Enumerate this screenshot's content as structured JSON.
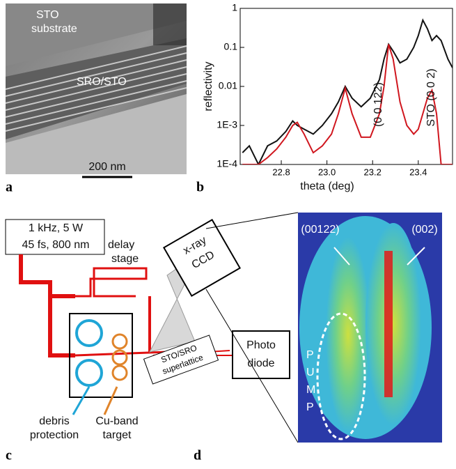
{
  "panel_a": {
    "label": "a",
    "texts": [
      "STO",
      "substrate",
      "SRO/STO"
    ],
    "scale_bar": "200 nm"
  },
  "chart_data": {
    "type": "line",
    "panel_label": "b",
    "x_label": "theta (deg)",
    "y_label": "reflectivity",
    "log_y": true,
    "xlim": [
      22.62,
      23.55
    ],
    "ylim": [
      0.0001,
      1
    ],
    "xticks": [
      22.8,
      {
        "value": 23,
        "label": "23.0"
      },
      23.2,
      23.4
    ],
    "yticks": [
      {
        "value": 0.0001,
        "label": "1E-4"
      },
      {
        "value": 0.001,
        "label": "1E-3"
      },
      0.01,
      0.1,
      1
    ],
    "annotations": [
      "(0 0 122)",
      "STO (0 0 2)"
    ],
    "x": [
      22.63,
      22.66,
      22.7,
      22.74,
      22.78,
      22.82,
      22.85,
      22.87,
      22.9,
      22.94,
      22.98,
      23.02,
      23.05,
      23.08,
      23.11,
      23.15,
      23.19,
      23.23,
      23.25,
      23.27,
      23.29,
      23.32,
      23.35,
      23.38,
      23.4,
      23.42,
      23.44,
      23.46,
      23.48,
      23.5,
      23.53,
      23.55
    ],
    "series": [
      {
        "color": "#111111",
        "values": [
          0.0002,
          0.0003,
          0.0001,
          0.0003,
          0.0004,
          0.0007,
          0.0013,
          0.001,
          0.0008,
          0.0006,
          0.001,
          0.002,
          0.004,
          0.01,
          0.005,
          0.003,
          0.005,
          0.015,
          0.05,
          0.12,
          0.08,
          0.04,
          0.05,
          0.1,
          0.2,
          0.5,
          0.3,
          0.15,
          0.2,
          0.15,
          0.05,
          0.03
        ]
      },
      {
        "color": "#d0161e",
        "values": [
          0.0001,
          0.0001,
          0.0001,
          0.00015,
          0.00025,
          0.0005,
          0.001,
          0.0012,
          0.0006,
          0.0002,
          0.0003,
          0.0006,
          0.002,
          0.009,
          0.002,
          0.0005,
          0.0005,
          0.002,
          0.01,
          0.12,
          0.05,
          0.004,
          0.001,
          0.0006,
          0.0008,
          0.002,
          0.005,
          0.008,
          0.002,
          0.0001,
          0.0001,
          0.0001
        ]
      }
    ]
  },
  "panel_c": {
    "label": "c",
    "laser": [
      "1 kHz, 5 W",
      "45 fs, 800 nm"
    ],
    "delay": [
      "delay",
      "stage"
    ],
    "ccd": [
      "x-ray",
      "CCD"
    ],
    "sample": [
      "STO/SRO",
      "superlattice"
    ],
    "detector": [
      "Photo",
      "diode"
    ],
    "debris": [
      "debris",
      "protection"
    ],
    "target": [
      "Cu-band",
      "target"
    ]
  },
  "panel_d": {
    "label": "d",
    "peaks": [
      "(00122)",
      "(002)"
    ],
    "pump": [
      "P",
      "U",
      "M",
      "P"
    ]
  }
}
